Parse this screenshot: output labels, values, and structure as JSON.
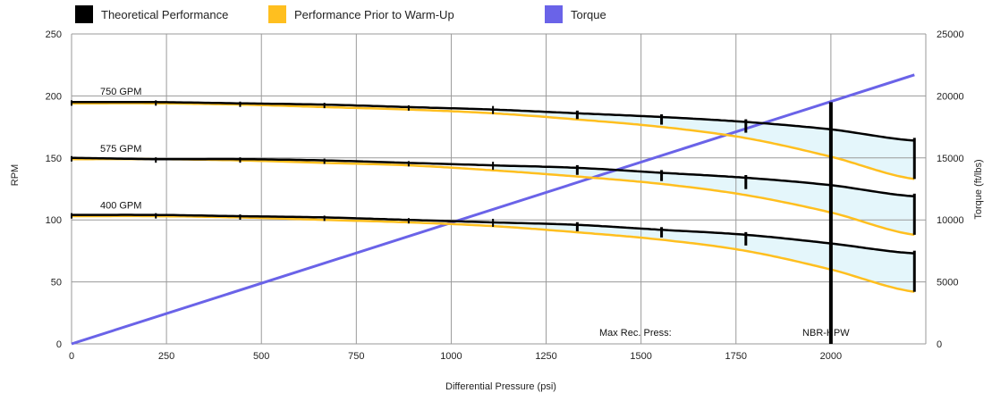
{
  "colors": {
    "theoretical": "#000000",
    "prior": "#FFBF1F",
    "torque": "#6A63E8",
    "band": "#E4F6FB",
    "grid": "#9a9a9a"
  },
  "legend": [
    {
      "label": "Theoretical Performance",
      "color": "#000000"
    },
    {
      "label": "Performance Prior to Warm-Up",
      "color": "#FFBF1F"
    },
    {
      "label": "Torque",
      "color": "#6A63E8"
    }
  ],
  "chart_data": {
    "type": "line",
    "xlabel": "Differential Pressure (psi)",
    "ylabel": "RPM",
    "y2label": "Torque (ft/lbs)",
    "xlim": [
      0,
      2250
    ],
    "ylim": [
      0,
      250
    ],
    "y2lim": [
      0,
      25000
    ],
    "xticks": [
      0,
      250,
      500,
      750,
      1000,
      1250,
      1500,
      1750,
      2000
    ],
    "yticks": [
      0,
      50,
      100,
      150,
      200,
      250
    ],
    "y2ticks": [
      0,
      5000,
      10000,
      15000,
      20000,
      25000
    ],
    "grid": true,
    "legend_position": "top",
    "marker_x": [
      0,
      222,
      444,
      666,
      888,
      1110,
      1332,
      1554,
      1776,
      2220
    ],
    "series": [
      {
        "name": "750 GPM",
        "kind": "theoretical",
        "x": [
          0,
          222,
          444,
          666,
          888,
          1110,
          1332,
          1554,
          1776,
          2000,
          2220
        ],
        "y": [
          195,
          195,
          194,
          193,
          191,
          189,
          186,
          183,
          179,
          173,
          164
        ]
      },
      {
        "name": "750 GPM",
        "kind": "prior",
        "x": [
          0,
          222,
          444,
          666,
          888,
          1110,
          1332,
          1554,
          1776,
          2000,
          2220
        ],
        "y": [
          194,
          194,
          193,
          191,
          189,
          186,
          181,
          175,
          166,
          151,
          133
        ]
      },
      {
        "name": "575 GPM",
        "kind": "theoretical",
        "x": [
          0,
          222,
          444,
          666,
          888,
          1110,
          1332,
          1554,
          1776,
          2000,
          2220
        ],
        "y": [
          150,
          149,
          149,
          148,
          146,
          144,
          142,
          138,
          134,
          128,
          119
        ]
      },
      {
        "name": "575 GPM",
        "kind": "prior",
        "x": [
          0,
          222,
          444,
          666,
          888,
          1110,
          1332,
          1554,
          1776,
          2000,
          2220
        ],
        "y": [
          149,
          149,
          148,
          146,
          144,
          140,
          135,
          129,
          120,
          106,
          88
        ]
      },
      {
        "name": "400 GPM",
        "kind": "theoretical",
        "x": [
          0,
          222,
          444,
          666,
          888,
          1110,
          1332,
          1554,
          1776,
          2000,
          2220
        ],
        "y": [
          104,
          104,
          103,
          102,
          100,
          98,
          96,
          92,
          88,
          81,
          73
        ]
      },
      {
        "name": "400 GPM",
        "kind": "prior",
        "x": [
          0,
          222,
          444,
          666,
          888,
          1110,
          1332,
          1554,
          1776,
          2000,
          2220
        ],
        "y": [
          103,
          103,
          102,
          100,
          98,
          95,
          90,
          84,
          75,
          60,
          42
        ]
      },
      {
        "name": "Torque",
        "kind": "torque",
        "axis": "y2",
        "x": [
          0,
          2220
        ],
        "y": [
          0,
          21700
        ]
      }
    ],
    "curve_labels": [
      {
        "text": "750 GPM",
        "x": 40,
        "y": 201
      },
      {
        "text": "575 GPM",
        "x": 40,
        "y": 155
      },
      {
        "text": "400 GPM",
        "x": 40,
        "y": 109
      }
    ],
    "vlines": [
      {
        "x": 2000,
        "ymax": 195,
        "text": "Max Rec. Press:",
        "text_x": 1390,
        "label2": "NBR-HPW",
        "label2_x": 1925
      }
    ]
  }
}
